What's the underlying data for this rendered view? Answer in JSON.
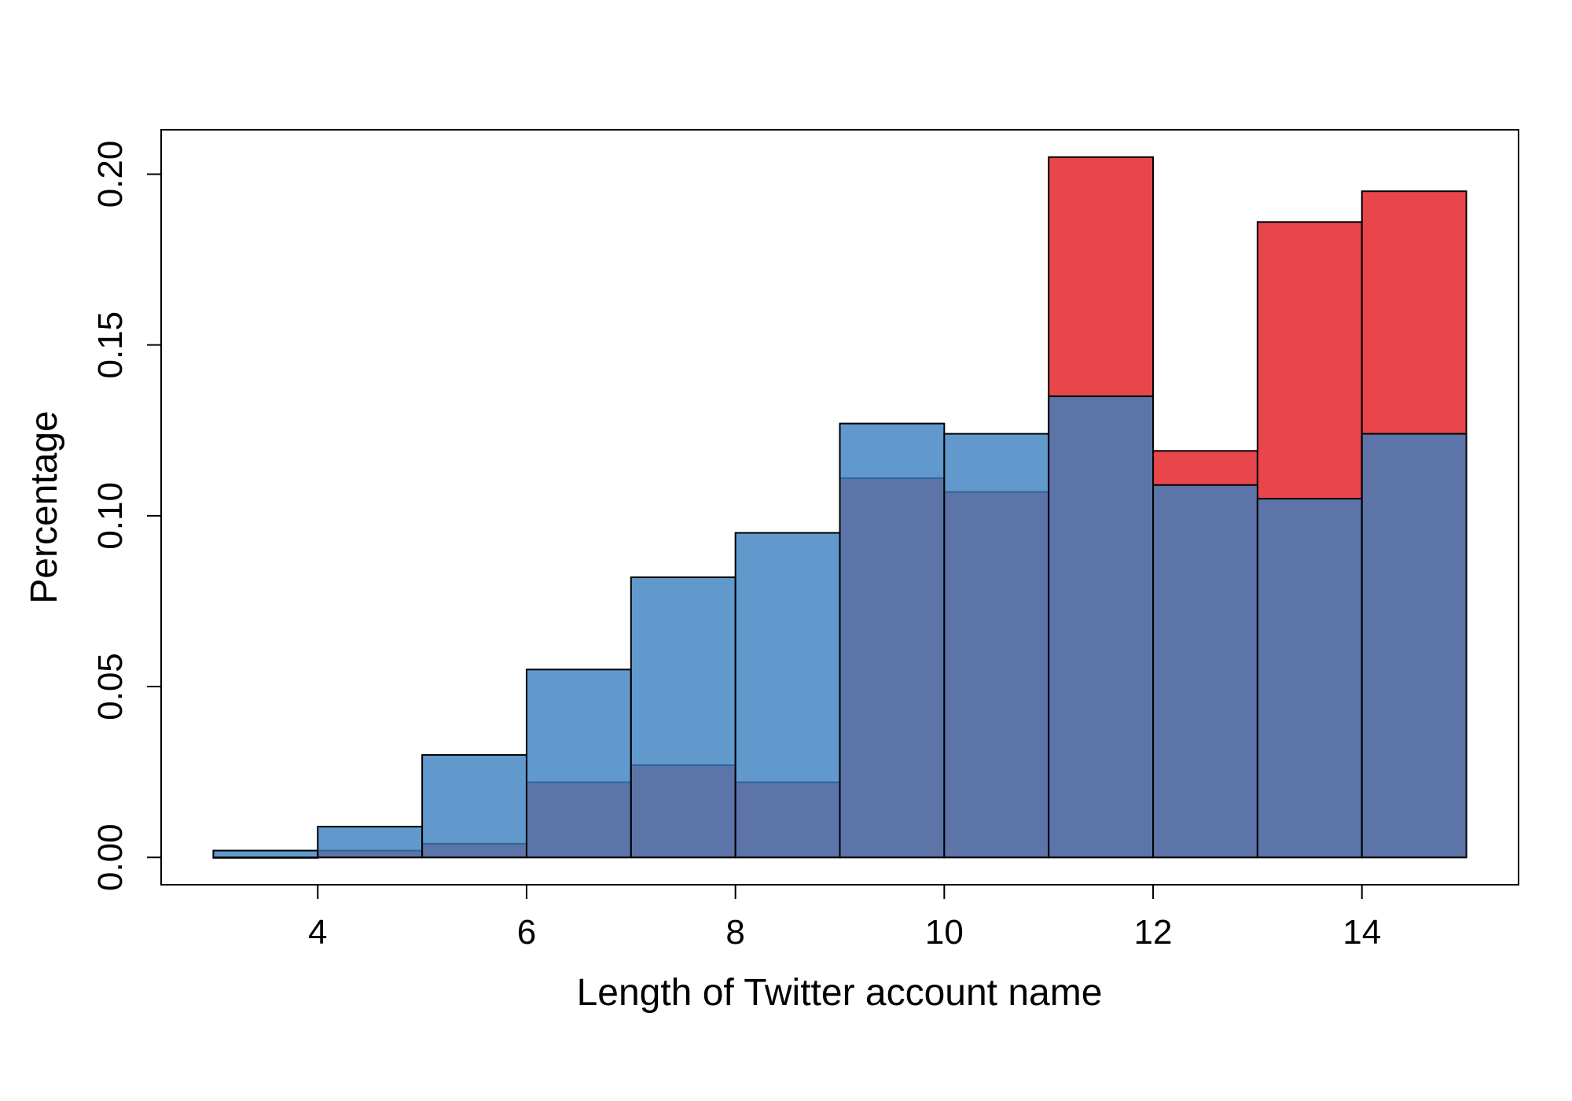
{
  "chart_data": {
    "type": "bar",
    "title": "",
    "xlabel": "Length of Twitter account name",
    "ylabel": "Percentage",
    "xlim": [
      2.5,
      15.5
    ],
    "ylim": [
      -0.008,
      0.213
    ],
    "x_ticks": [
      4,
      6,
      8,
      10,
      12,
      14
    ],
    "x_tick_labels": [
      "4",
      "6",
      "8",
      "10",
      "12",
      "14"
    ],
    "y_ticks": [
      0.0,
      0.05,
      0.1,
      0.15,
      0.2
    ],
    "y_tick_labels": [
      "0.00",
      "0.05",
      "0.10",
      "0.15",
      "0.20"
    ],
    "grid": false,
    "legend": "none",
    "bin_edges": [
      3,
      4,
      5,
      6,
      7,
      8,
      9,
      10,
      11,
      12,
      13,
      14,
      15
    ],
    "series": [
      {
        "color": "#E8464A",
        "values": [
          0.0,
          0.002,
          0.004,
          0.022,
          0.027,
          0.022,
          0.111,
          0.107,
          0.205,
          0.119,
          0.186,
          0.195
        ]
      },
      {
        "color": "#3A80C0",
        "opacity": 0.8,
        "values": [
          0.002,
          0.009,
          0.03,
          0.055,
          0.082,
          0.095,
          0.127,
          0.124,
          0.135,
          0.109,
          0.105,
          0.124
        ]
      }
    ]
  }
}
